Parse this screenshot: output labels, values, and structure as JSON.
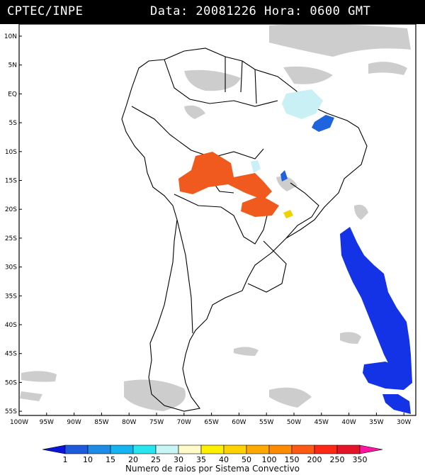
{
  "header": {
    "source": "CPTEC/INPE",
    "datetime": "Data: 20081226 Hora: 0600 GMT"
  },
  "map": {
    "lat_labels": [
      "10N",
      "5N",
      "EQ",
      "5S",
      "10S",
      "15S",
      "20S",
      "25S",
      "30S",
      "35S",
      "40S",
      "45S",
      "50S",
      "55S"
    ],
    "lon_labels": [
      "100W",
      "95W",
      "90W",
      "85W",
      "80W",
      "75W",
      "70W",
      "65W",
      "60W",
      "55W",
      "50W",
      "45W",
      "40W",
      "35W",
      "30W"
    ],
    "regions": [
      {
        "name": "amazon-southern-cells",
        "class": "200",
        "color": "#f05a1e"
      },
      {
        "name": "mato-grosso-cells",
        "class": "200",
        "color": "#f05a1e"
      },
      {
        "name": "atlantic-south-band",
        "class": "1",
        "color": "#1432e6"
      },
      {
        "name": "patagonia-atlantic",
        "class": "1",
        "color": "#1432e6"
      },
      {
        "name": "northeast-brazil-cells",
        "class": "10",
        "color": "#1e64dc"
      },
      {
        "name": "north-brazil-light",
        "class": "30",
        "color": "#c8f0f5"
      },
      {
        "name": "parana-cell",
        "class": "50",
        "color": "#f0d200"
      }
    ]
  },
  "legend": {
    "labels": [
      "1",
      "10",
      "15",
      "20",
      "25",
      "30",
      "35",
      "40",
      "50",
      "100",
      "150",
      "200",
      "250",
      "350"
    ],
    "colors": [
      "#0a14dc",
      "#1e5adc",
      "#1e8ce6",
      "#14b4f0",
      "#28e6f0",
      "#c8f5f5",
      "#fffac8",
      "#fff000",
      "#ffd200",
      "#ffaa00",
      "#ff8c00",
      "#ff5a14",
      "#ff2814",
      "#e61428",
      "#ff14a0"
    ],
    "title": "Numero de raios por Sistema Convectivo"
  }
}
